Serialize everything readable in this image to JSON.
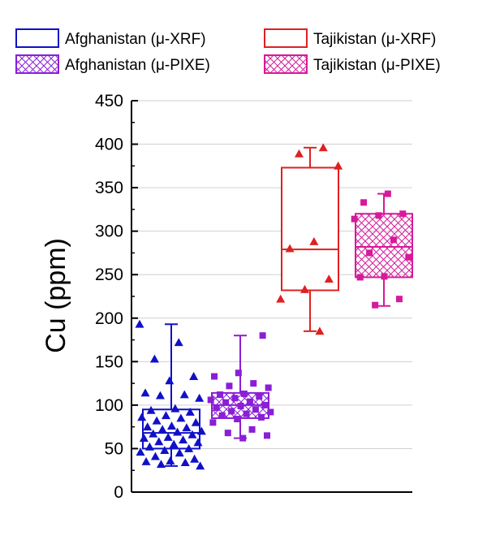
{
  "chart_data": {
    "type": "box",
    "title": "",
    "xlabel": "",
    "ylabel": "Cu (ppm)",
    "ylim": [
      0,
      450
    ],
    "yticks": [
      0,
      50,
      100,
      150,
      200,
      250,
      300,
      350,
      400,
      450
    ],
    "grid": "horizontal",
    "legend": {
      "placement": "top",
      "entries": [
        {
          "label": "Afghanistan (μ-XRF)",
          "color": "#1010c8",
          "fill": "none"
        },
        {
          "label": "Tajikistan (μ-XRF)",
          "color": "#e02020",
          "fill": "none"
        },
        {
          "label": "Afghanistan (μ-PIXE)",
          "color": "#8a1fd6",
          "fill": "crosshatch"
        },
        {
          "label": "Tajikistan (μ-PIXE)",
          "color": "#d61a9a",
          "fill": "crosshatch"
        }
      ]
    },
    "series": [
      {
        "name": "Afghanistan (μ-XRF)",
        "color": "#1010c8",
        "marker": "triangle",
        "fill": "none",
        "whisker_low": 30,
        "q1": 50,
        "median": 68,
        "q3": 95,
        "whisker_high": 193,
        "points": [
          193,
          172,
          153,
          133,
          128,
          114,
          112,
          111,
          108,
          96,
          94,
          92,
          88,
          86,
          85,
          82,
          80,
          76,
          75,
          74,
          72,
          70,
          69,
          67,
          66,
          63,
          62,
          60,
          58,
          57,
          55,
          52,
          50,
          48,
          46,
          45,
          41,
          38,
          36,
          35,
          34,
          32,
          30
        ]
      },
      {
        "name": "Afghanistan (μ-PIXE)",
        "color": "#8a1fd6",
        "marker": "square",
        "fill": "crosshatch",
        "whisker_low": 62,
        "q1": 85,
        "median": 100,
        "q3": 114,
        "whisker_high": 180,
        "points": [
          180,
          137,
          133,
          125,
          122,
          120,
          113,
          112,
          110,
          108,
          106,
          104,
          103,
          100,
          99,
          97,
          95,
          93,
          92,
          90,
          88,
          86,
          84,
          80,
          72,
          68,
          65,
          62
        ]
      },
      {
        "name": "Tajikistan (μ-XRF)",
        "color": "#e02020",
        "marker": "triangle",
        "fill": "none",
        "whisker_low": 185,
        "q1": 232,
        "median": 279,
        "q3": 373,
        "whisker_high": 396,
        "points": [
          396,
          389,
          375,
          288,
          280,
          245,
          233,
          222,
          185
        ]
      },
      {
        "name": "Tajikistan (μ-PIXE)",
        "color": "#d61a9a",
        "marker": "square",
        "fill": "crosshatch",
        "whisker_low": 214,
        "q1": 247,
        "median": 282,
        "q3": 320,
        "whisker_high": 343,
        "points": [
          343,
          333,
          320,
          318,
          314,
          290,
          275,
          270,
          248,
          247,
          222,
          215
        ]
      }
    ]
  }
}
